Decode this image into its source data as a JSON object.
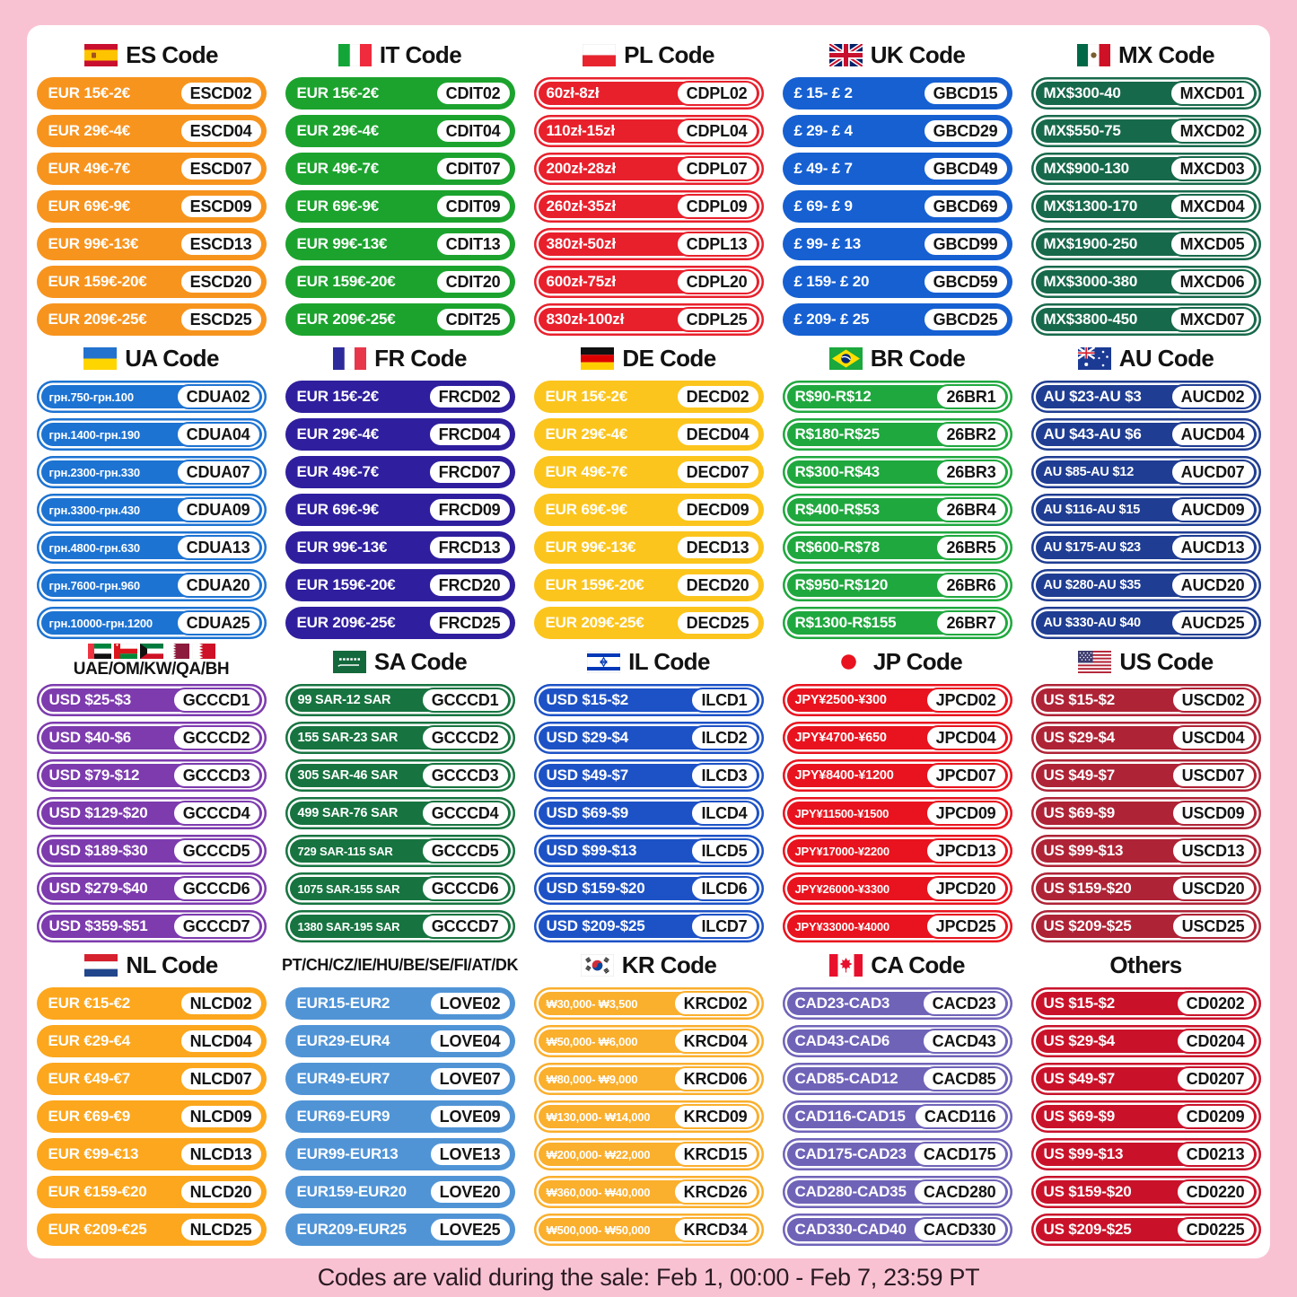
{
  "footer": {
    "note": "Codes are valid during the sale: Feb 1, 00:00 - Feb 7, 23:59 PT"
  },
  "colors": {
    "background_pink": "#F9C2D3",
    "card_white": "#FFFFFF",
    "badge_text": "#141414",
    "header_text": "#121212"
  },
  "groups": [
    {
      "id": "es",
      "label": "ES Code",
      "flag": "es-flag-icon",
      "color": "#F7941E",
      "ring": false,
      "items": [
        {
          "range": "EUR 15€-2€",
          "code": "ESCD02"
        },
        {
          "range": "EUR 29€-4€",
          "code": "ESCD04"
        },
        {
          "range": "EUR 49€-7€",
          "code": "ESCD07"
        },
        {
          "range": "EUR 69€-9€",
          "code": "ESCD09"
        },
        {
          "range": "EUR 99€-13€",
          "code": "ESCD13"
        },
        {
          "range": "EUR 159€-20€",
          "code": "ESCD20"
        },
        {
          "range": "EUR 209€-25€",
          "code": "ESCD25"
        }
      ]
    },
    {
      "id": "it",
      "label": "IT Code",
      "flag": "it-flag-icon",
      "color": "#1CA32E",
      "ring": false,
      "items": [
        {
          "range": "EUR 15€-2€",
          "code": "CDIT02"
        },
        {
          "range": "EUR 29€-4€",
          "code": "CDIT04"
        },
        {
          "range": "EUR 49€-7€",
          "code": "CDIT07"
        },
        {
          "range": "EUR 69€-9€",
          "code": "CDIT09"
        },
        {
          "range": "EUR 99€-13€",
          "code": "CDIT13"
        },
        {
          "range": "EUR 159€-20€",
          "code": "CDIT20"
        },
        {
          "range": "EUR 209€-25€",
          "code": "CDIT25"
        }
      ]
    },
    {
      "id": "pl",
      "label": "PL Code",
      "flag": "pl-flag-icon",
      "color": "#E8202C",
      "ring": true,
      "items": [
        {
          "range": "60zł-8zł",
          "code": "CDPL02"
        },
        {
          "range": "110zł-15zł",
          "code": "CDPL04"
        },
        {
          "range": "200zł-28zł",
          "code": "CDPL07"
        },
        {
          "range": "260zł-35zł",
          "code": "CDPL09"
        },
        {
          "range": "380zł-50zł",
          "code": "CDPL13"
        },
        {
          "range": "600zł-75zł",
          "code": "CDPL20"
        },
        {
          "range": "830zł-100zł",
          "code": "CDPL25"
        }
      ]
    },
    {
      "id": "uk",
      "label": "UK Code",
      "flag": "uk-flag-icon",
      "color": "#1660D2",
      "ring": false,
      "items": [
        {
          "range": "£ 15- £ 2",
          "code": "GBCD15"
        },
        {
          "range": "£ 29- £ 4",
          "code": "GBCD29"
        },
        {
          "range": "£ 49- £ 7",
          "code": "GBCD49"
        },
        {
          "range": "£ 69- £ 9",
          "code": "GBCD69"
        },
        {
          "range": "£ 99- £ 13",
          "code": "GBCD99"
        },
        {
          "range": "£ 159- £ 20",
          "code": "GBCD59"
        },
        {
          "range": "£ 209- £ 25",
          "code": "GBCD25"
        }
      ]
    },
    {
      "id": "mx",
      "label": "MX Code",
      "flag": "mx-flag-icon",
      "color": "#17694B",
      "ring": true,
      "items": [
        {
          "range": "MX$300-40",
          "code": "MXCD01"
        },
        {
          "range": "MX$550-75",
          "code": "MXCD02"
        },
        {
          "range": "MX$900-130",
          "code": "MXCD03"
        },
        {
          "range": "MX$1300-170",
          "code": "MXCD04"
        },
        {
          "range": "MX$1900-250",
          "code": "MXCD05"
        },
        {
          "range": "MX$3000-380",
          "code": "MXCD06"
        },
        {
          "range": "MX$3800-450",
          "code": "MXCD07"
        }
      ]
    },
    {
      "id": "ua",
      "label": "UA Code",
      "flag": "ua-flag-icon",
      "color": "#1D73D2",
      "ring": true,
      "items": [
        {
          "range": "грн.750-грн.100",
          "code": "CDUA02"
        },
        {
          "range": "грн.1400-грн.190",
          "code": "CDUA04"
        },
        {
          "range": "грн.2300-грн.330",
          "code": "CDUA07"
        },
        {
          "range": "грн.3300-грн.430",
          "code": "CDUA09"
        },
        {
          "range": "грн.4800-грн.630",
          "code": "CDUA13"
        },
        {
          "range": "грн.7600-грн.960",
          "code": "CDUA20"
        },
        {
          "range": "грн.10000-грн.1200",
          "code": "CDUA25"
        }
      ]
    },
    {
      "id": "fr",
      "label": "FR Code",
      "flag": "fr-flag-icon",
      "color": "#2F1F9E",
      "ring": false,
      "items": [
        {
          "range": "EUR 15€-2€",
          "code": "FRCD02"
        },
        {
          "range": "EUR 29€-4€",
          "code": "FRCD04"
        },
        {
          "range": "EUR 49€-7€",
          "code": "FRCD07"
        },
        {
          "range": "EUR 69€-9€",
          "code": "FRCD09"
        },
        {
          "range": "EUR 99€-13€",
          "code": "FRCD13"
        },
        {
          "range": "EUR 159€-20€",
          "code": "FRCD20"
        },
        {
          "range": "EUR 209€-25€",
          "code": "FRCD25"
        }
      ]
    },
    {
      "id": "de",
      "label": "DE Code",
      "flag": "de-flag-icon",
      "color": "#FCC51D",
      "ring": false,
      "items": [
        {
          "range": "EUR 15€-2€",
          "code": "DECD02"
        },
        {
          "range": "EUR 29€-4€",
          "code": "DECD04"
        },
        {
          "range": "EUR 49€-7€",
          "code": "DECD07"
        },
        {
          "range": "EUR 69€-9€",
          "code": "DECD09"
        },
        {
          "range": "EUR 99€-13€",
          "code": "DECD13"
        },
        {
          "range": "EUR 159€-20€",
          "code": "DECD20"
        },
        {
          "range": "EUR 209€-25€",
          "code": "DECD25"
        }
      ]
    },
    {
      "id": "br",
      "label": "BR Code",
      "flag": "br-flag-icon",
      "color": "#1FA83E",
      "ring": true,
      "items": [
        {
          "range": "R$90-R$12",
          "code": "26BR1"
        },
        {
          "range": "R$180-R$25",
          "code": "26BR2"
        },
        {
          "range": "R$300-R$43",
          "code": "26BR3"
        },
        {
          "range": "R$400-R$53",
          "code": "26BR4"
        },
        {
          "range": "R$600-R$78",
          "code": "26BR5"
        },
        {
          "range": "R$950-R$120",
          "code": "26BR6"
        },
        {
          "range": "R$1300-R$155",
          "code": "26BR7"
        }
      ]
    },
    {
      "id": "au",
      "label": "AU Code",
      "flag": "au-flag-icon",
      "color": "#1F3D92",
      "ring": true,
      "items": [
        {
          "range": "AU $23-AU $3",
          "code": "AUCD02"
        },
        {
          "range": "AU $43-AU $6",
          "code": "AUCD04"
        },
        {
          "range": "AU $85-AU $12",
          "code": "AUCD07"
        },
        {
          "range": "AU $116-AU $15",
          "code": "AUCD09"
        },
        {
          "range": "AU $175-AU $23",
          "code": "AUCD13"
        },
        {
          "range": "AU $280-AU $35",
          "code": "AUCD20"
        },
        {
          "range": "AU $330-AU $40",
          "code": "AUCD25"
        }
      ]
    },
    {
      "id": "gcc",
      "label": "UAE/OM/KW/QA/BH",
      "flags": [
        "ae-flag-icon",
        "om-flag-icon",
        "kw-flag-icon",
        "qa-flag-icon",
        "bh-flag-icon"
      ],
      "color": "#7D3BAE",
      "ring": true,
      "items": [
        {
          "range": "USD $25-$3",
          "code": "GCCCD1"
        },
        {
          "range": "USD $40-$6",
          "code": "GCCCD2"
        },
        {
          "range": "USD $79-$12",
          "code": "GCCCD3"
        },
        {
          "range": "USD $129-$20",
          "code": "GCCCD4"
        },
        {
          "range": "USD $189-$30",
          "code": "GCCCD5"
        },
        {
          "range": "USD $279-$40",
          "code": "GCCCD6"
        },
        {
          "range": "USD $359-$51",
          "code": "GCCCD7"
        }
      ]
    },
    {
      "id": "sa",
      "label": "SA Code",
      "flag": "sa-flag-icon",
      "color": "#177440",
      "ring": true,
      "items": [
        {
          "range": "99 SAR-12 SAR",
          "code": "GCCCD1"
        },
        {
          "range": "155 SAR-23 SAR",
          "code": "GCCCD2"
        },
        {
          "range": "305 SAR-46 SAR",
          "code": "GCCCD3"
        },
        {
          "range": "499 SAR-76 SAR",
          "code": "GCCCD4"
        },
        {
          "range": "729 SAR-115 SAR",
          "code": "GCCCD5"
        },
        {
          "range": "1075 SAR-155 SAR",
          "code": "GCCCD6"
        },
        {
          "range": "1380 SAR-195 SAR",
          "code": "GCCCD7"
        }
      ]
    },
    {
      "id": "il",
      "label": "IL Code",
      "flag": "il-flag-icon",
      "color": "#1D52C6",
      "ring": true,
      "items": [
        {
          "range": "USD $15-$2",
          "code": "ILCD1"
        },
        {
          "range": "USD $29-$4",
          "code": "ILCD2"
        },
        {
          "range": "USD $49-$7",
          "code": "ILCD3"
        },
        {
          "range": "USD $69-$9",
          "code": "ILCD4"
        },
        {
          "range": "USD $99-$13",
          "code": "ILCD5"
        },
        {
          "range": "USD $159-$20",
          "code": "ILCD6"
        },
        {
          "range": "USD $209-$25",
          "code": "ILCD7"
        }
      ]
    },
    {
      "id": "jp",
      "label": "JP Code",
      "flag": "jp-flag-icon",
      "color": "#E8131E",
      "ring": true,
      "items": [
        {
          "range": "JPY¥2500-¥300",
          "code": "JPCD02"
        },
        {
          "range": "JPY¥4700-¥650",
          "code": "JPCD04"
        },
        {
          "range": "JPY¥8400-¥1200",
          "code": "JPCD07"
        },
        {
          "range": "JPY¥11500-¥1500",
          "code": "JPCD09"
        },
        {
          "range": "JPY¥17000-¥2200",
          "code": "JPCD13"
        },
        {
          "range": "JPY¥26000-¥3300",
          "code": "JPCD20"
        },
        {
          "range": "JPY¥33000-¥4000",
          "code": "JPCD25"
        }
      ]
    },
    {
      "id": "us",
      "label": "US Code",
      "flag": "us-flag-icon",
      "color": "#AE2336",
      "ring": true,
      "items": [
        {
          "range": "US $15-$2",
          "code": "USCD02"
        },
        {
          "range": "US $29-$4",
          "code": "USCD04"
        },
        {
          "range": "US $49-$7",
          "code": "USCD07"
        },
        {
          "range": "US $69-$9",
          "code": "USCD09"
        },
        {
          "range": "US $99-$13",
          "code": "USCD13"
        },
        {
          "range": "US $159-$20",
          "code": "USCD20"
        },
        {
          "range": "US $209-$25",
          "code": "USCD25"
        }
      ]
    },
    {
      "id": "nl",
      "label": "NL Code",
      "flag": "nl-flag-icon",
      "color": "#FCA71D",
      "ring": false,
      "items": [
        {
          "range": "EUR €15-€2",
          "code": "NLCD02"
        },
        {
          "range": "EUR €29-€4",
          "code": "NLCD04"
        },
        {
          "range": "EUR €49-€7",
          "code": "NLCD07"
        },
        {
          "range": "EUR €69-€9",
          "code": "NLCD09"
        },
        {
          "range": "EUR €99-€13",
          "code": "NLCD13"
        },
        {
          "range": "EUR €159-€20",
          "code": "NLCD20"
        },
        {
          "range": "EUR €209-€25",
          "code": "NLCD25"
        }
      ]
    },
    {
      "id": "love",
      "label": "PT/CH/CZ/IE/HU/BE/SE/FI/AT/DK",
      "color": "#5094D6",
      "ring": false,
      "items": [
        {
          "range": "EUR15-EUR2",
          "code": "LOVE02"
        },
        {
          "range": "EUR29-EUR4",
          "code": "LOVE04"
        },
        {
          "range": "EUR49-EUR7",
          "code": "LOVE07"
        },
        {
          "range": "EUR69-EUR9",
          "code": "LOVE09"
        },
        {
          "range": "EUR99-EUR13",
          "code": "LOVE13"
        },
        {
          "range": "EUR159-EUR20",
          "code": "LOVE20"
        },
        {
          "range": "EUR209-EUR25",
          "code": "LOVE25"
        }
      ]
    },
    {
      "id": "kr",
      "label": "KR Code",
      "flag": "kr-flag-icon",
      "color": "#FAAF2D",
      "ring": true,
      "items": [
        {
          "range": "₩30,000- ₩3,500",
          "code": "KRCD02"
        },
        {
          "range": "₩50,000- ₩6,000",
          "code": "KRCD04"
        },
        {
          "range": "₩80,000- ₩9,000",
          "code": "KRCD06"
        },
        {
          "range": "₩130,000- ₩14,000",
          "code": "KRCD09"
        },
        {
          "range": "₩200,000- ₩22,000",
          "code": "KRCD15"
        },
        {
          "range": "₩360,000- ₩40,000",
          "code": "KRCD26"
        },
        {
          "range": "₩500,000- ₩50,000",
          "code": "KRCD34"
        }
      ]
    },
    {
      "id": "ca",
      "label": "CA Code",
      "flag": "ca-flag-icon",
      "color": "#6F63B8",
      "ring": true,
      "items": [
        {
          "range": "CAD23-CAD3",
          "code": "CACD23"
        },
        {
          "range": "CAD43-CAD6",
          "code": "CACD43"
        },
        {
          "range": "CAD85-CAD12",
          "code": "CACD85"
        },
        {
          "range": "CAD116-CAD15",
          "code": "CACD116"
        },
        {
          "range": "CAD175-CAD23",
          "code": "CACD175"
        },
        {
          "range": "CAD280-CAD35",
          "code": "CACD280"
        },
        {
          "range": "CAD330-CAD40",
          "code": "CACD330"
        }
      ]
    },
    {
      "id": "others",
      "label": "Others",
      "color": "#C9122A",
      "ring": true,
      "items": [
        {
          "range": "US $15-$2",
          "code": "CD0202"
        },
        {
          "range": "US $29-$4",
          "code": "CD0204"
        },
        {
          "range": "US $49-$7",
          "code": "CD0207"
        },
        {
          "range": "US $69-$9",
          "code": "CD0209"
        },
        {
          "range": "US $99-$13",
          "code": "CD0213"
        },
        {
          "range": "US $159-$20",
          "code": "CD0220"
        },
        {
          "range": "US $209-$25",
          "code": "CD0225"
        }
      ]
    }
  ]
}
